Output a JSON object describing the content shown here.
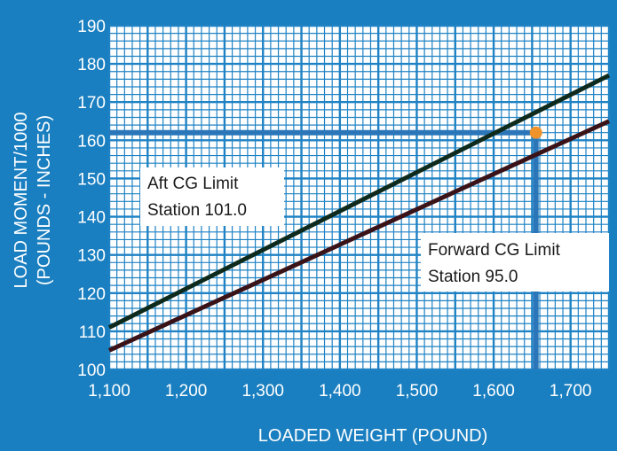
{
  "chart_data": {
    "type": "line",
    "xlabel": "LOADED WEIGHT (POUND)",
    "ylabel_line1": "LOAD MOMENT/1000",
    "ylabel_line2": "(POUNDS - INCHES)",
    "xlim": [
      1100,
      1750
    ],
    "ylim": [
      100,
      190
    ],
    "x_ticks": [
      1100,
      1200,
      1300,
      1400,
      1500,
      1600,
      1700
    ],
    "x_tick_labels": [
      "1,100",
      "1,200",
      "1,300",
      "1,400",
      "1,500",
      "1,600",
      "1,700"
    ],
    "y_ticks": [
      100,
      110,
      120,
      130,
      140,
      150,
      160,
      170,
      180,
      190
    ],
    "y_tick_labels": [
      "100",
      "110",
      "120",
      "130",
      "140",
      "150",
      "160",
      "170",
      "180",
      "190"
    ],
    "grid": true,
    "series": [
      {
        "x": [
          1100,
          1750
        ],
        "y": [
          111,
          177
        ],
        "color": "#0e2a1c"
      },
      {
        "x": [
          1100,
          1750
        ],
        "y": [
          105,
          165
        ],
        "color": "#3a1318"
      }
    ],
    "highlight_point": {
      "x": 1655,
      "y": 162,
      "color": "#f0932b"
    },
    "reference_line_color": "#2a76b8",
    "annotations": [
      {
        "line1": "Aft CG Limit",
        "line2": "Station 101.0"
      },
      {
        "line1": "Forward CG Limit",
        "line2": "Station 95.0"
      }
    ],
    "colors": {
      "background": "#1a7fc0",
      "plot_background": "#ffffff",
      "grid": "#1f82c4"
    }
  }
}
